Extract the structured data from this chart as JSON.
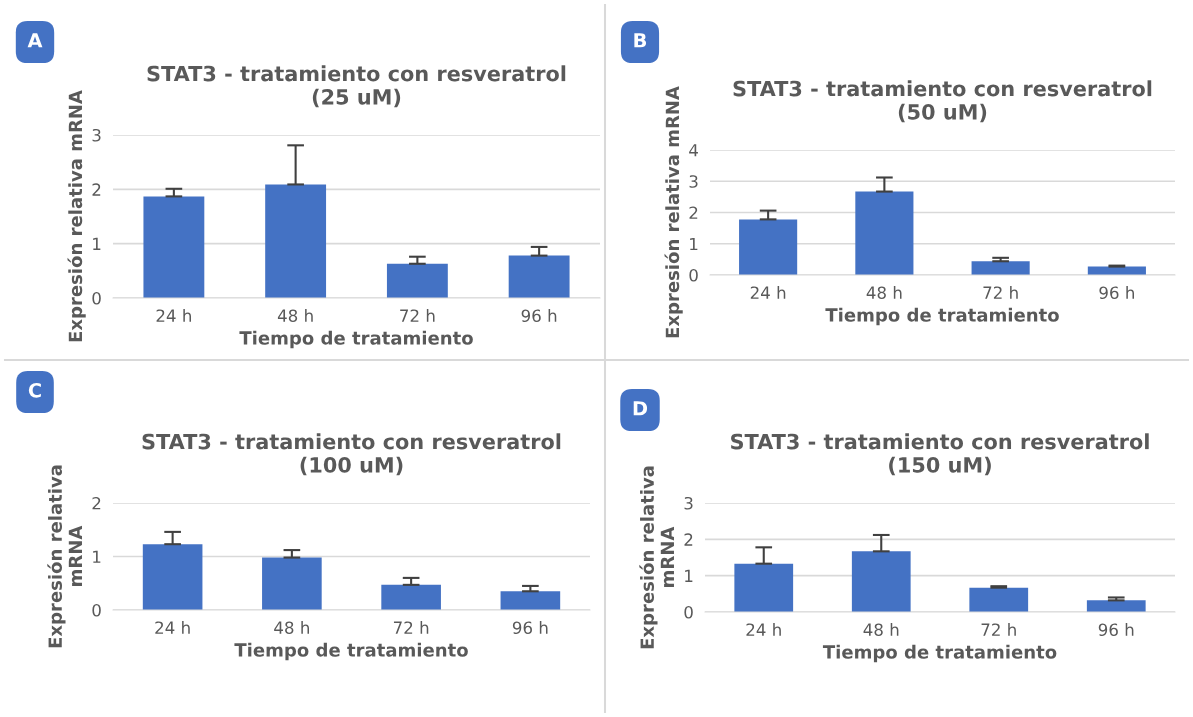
{
  "chart_data": [
    {
      "type": "bar",
      "title": "STAT3 - tratamiento con resveratrol\n(25 uM)",
      "xlabel": "Tiempo de tratamiento",
      "ylabel": "Expresión relativa mRNA",
      "annotations": [
        "A"
      ],
      "categories": [
        "24 h",
        "48 h",
        "72 h",
        "96 h"
      ],
      "values": [
        1.87,
        2.09,
        0.63,
        0.78
      ],
      "errors": [
        [
          1.87,
          2.01
        ],
        [
          2.09,
          2.81
        ],
        [
          0.63,
          0.76
        ],
        [
          0.78,
          0.94
        ]
      ],
      "color": "#4472c4",
      "ylim": [
        0,
        3
      ],
      "yticks": [
        0,
        1,
        2,
        3
      ],
      "grid": "y"
    },
    {
      "type": "bar",
      "title": "STAT3 - tratamiento con resveratrol\n(50 uM)",
      "xlabel": "Tiempo de tratamiento",
      "ylabel": "Expresión relativa mRNA",
      "annotations": [
        "B"
      ],
      "categories": [
        "24 h",
        "48 h",
        "72 h",
        "96 h"
      ],
      "values": [
        1.78,
        2.67,
        0.44,
        0.27
      ],
      "errors": [
        [
          1.78,
          2.06
        ],
        [
          2.67,
          3.12
        ],
        [
          0.44,
          0.55
        ],
        [
          0.27,
          0.3
        ]
      ],
      "color": "#4472c4",
      "ylim": [
        0,
        4
      ],
      "yticks": [
        0,
        1,
        2,
        3,
        4
      ],
      "grid": "y"
    },
    {
      "type": "bar",
      "title": "STAT3 - tratamiento con resveratrol\n(100 uM)",
      "xlabel": "Tiempo de tratamiento",
      "ylabel": "Expresión relativa\nmRNA",
      "annotations": [
        "C"
      ],
      "categories": [
        "24 h",
        "48 h",
        "72 h",
        "96 h"
      ],
      "values": [
        1.23,
        0.98,
        0.47,
        0.35
      ],
      "errors": [
        [
          1.23,
          1.46
        ],
        [
          0.98,
          1.12
        ],
        [
          0.47,
          0.6
        ],
        [
          0.35,
          0.45
        ]
      ],
      "color": "#4472c4",
      "ylim": [
        0,
        2
      ],
      "yticks": [
        0,
        1,
        2
      ],
      "grid": "y"
    },
    {
      "type": "bar",
      "title": "STAT3 - tratamiento con resveratrol\n(150 uM)",
      "xlabel": "Tiempo de tratamiento",
      "ylabel": "Expresión relativa\nmRNA",
      "annotations": [
        "D"
      ],
      "categories": [
        "24 h",
        "48 h",
        "72 h",
        "96 h"
      ],
      "values": [
        1.33,
        1.67,
        0.67,
        0.32
      ],
      "errors": [
        [
          1.33,
          1.78
        ],
        [
          1.67,
          2.12
        ],
        [
          0.67,
          0.71
        ],
        [
          0.32,
          0.4
        ]
      ],
      "color": "#4472c4",
      "ylim": [
        0,
        3
      ],
      "yticks": [
        0,
        1,
        2,
        3
      ],
      "grid": "y"
    }
  ]
}
